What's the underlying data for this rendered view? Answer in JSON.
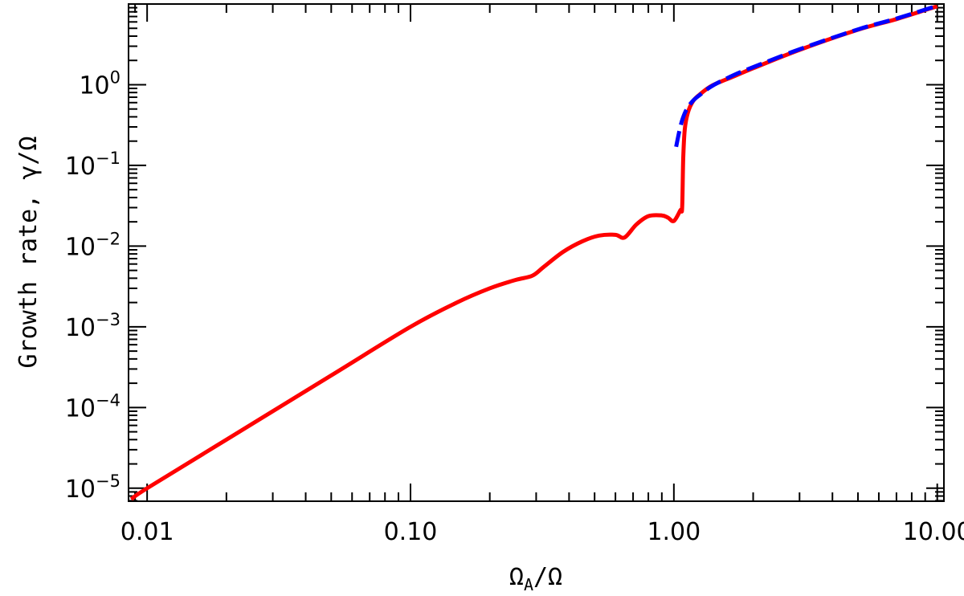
{
  "chart_data": {
    "type": "line",
    "xlabel": "ΩA/Ω",
    "xlabel_parts": {
      "main": "Ω",
      "sub": "A",
      "rest": "/Ω"
    },
    "ylabel": "Growth rate, γ/Ω",
    "x_scale": "log",
    "y_scale": "log",
    "xlim": [
      0.0085,
      10.6
    ],
    "ylim": [
      6.9e-06,
      10.0
    ],
    "x_ticks": [
      {
        "value": 0.01,
        "label": "0.01"
      },
      {
        "value": 0.1,
        "label": "0.10"
      },
      {
        "value": 1.0,
        "label": "1.00"
      },
      {
        "value": 10.0,
        "label": "10.00"
      }
    ],
    "y_ticks": [
      {
        "value": 1.0,
        "base": "10",
        "exp": "0"
      },
      {
        "value": 0.1,
        "base": "10",
        "exp": "−1"
      },
      {
        "value": 0.01,
        "base": "10",
        "exp": "−2"
      },
      {
        "value": 0.001,
        "base": "10",
        "exp": "−3"
      },
      {
        "value": 0.0001,
        "base": "10",
        "exp": "−4"
      },
      {
        "value": 1e-05,
        "base": "10",
        "exp": "−5"
      }
    ],
    "series": [
      {
        "color": "#ff0000",
        "style": "solid",
        "x": [
          0.0087,
          0.01,
          0.02,
          0.05,
          0.1,
          0.15,
          0.2,
          0.25,
          0.29,
          0.32,
          0.38,
          0.45,
          0.52,
          0.6,
          0.65,
          0.72,
          0.8,
          0.9,
          0.95,
          1.0,
          1.06,
          1.075,
          1.085,
          1.1,
          1.13,
          1.18,
          1.25,
          1.4,
          1.7,
          2.0,
          3.0,
          5.0,
          7.0,
          10.0
        ],
        "y": [
          7.3e-06,
          1e-05,
          4e-05,
          0.00025,
          0.001,
          0.002,
          0.003,
          0.0038,
          0.0043,
          0.0055,
          0.0085,
          0.0115,
          0.0135,
          0.0138,
          0.0128,
          0.0185,
          0.0235,
          0.024,
          0.0225,
          0.0205,
          0.028,
          0.03,
          0.12,
          0.28,
          0.45,
          0.62,
          0.75,
          0.98,
          1.28,
          1.6,
          2.7,
          4.8,
          6.5,
          9.4
        ]
      },
      {
        "color": "#0000ff",
        "style": "dashed",
        "x": [
          1.02,
          1.05,
          1.08,
          1.12,
          1.18,
          1.25,
          1.4,
          1.7,
          2.0,
          3.0,
          5.0,
          7.0,
          10.0
        ],
        "y": [
          0.17,
          0.27,
          0.38,
          0.5,
          0.63,
          0.74,
          0.97,
          1.33,
          1.65,
          2.75,
          4.85,
          6.6,
          9.5
        ]
      }
    ]
  }
}
